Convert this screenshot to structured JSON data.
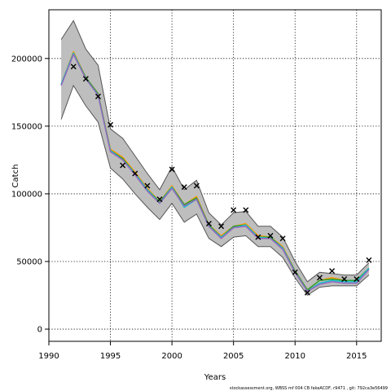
{
  "chart_data": {
    "type": "line",
    "title": "",
    "xlabel": "Years",
    "ylabel": "Catch",
    "xlim": [
      1990,
      2017
    ],
    "ylim": [
      -9000,
      236000
    ],
    "xticks": [
      1990,
      1995,
      2000,
      2005,
      2010,
      2015
    ],
    "yticks": [
      0,
      50000,
      100000,
      150000,
      200000
    ],
    "grid": true,
    "grid_style": "dotted",
    "x": [
      1991,
      1992,
      1993,
      1994,
      1995,
      1996,
      1997,
      1998,
      1999,
      2000,
      2001,
      2002,
      2003,
      2004,
      2005,
      2006,
      2007,
      2008,
      2009,
      2010,
      2011,
      2012,
      2013,
      2014,
      2015,
      2016
    ],
    "band": {
      "color": "#bebebe",
      "upper": [
        214000,
        228000,
        207000,
        195000,
        148000,
        141000,
        128000,
        115000,
        103000,
        120000,
        103000,
        110000,
        86000,
        77000,
        86000,
        87000,
        76000,
        76000,
        68000,
        50000,
        35000,
        42000,
        41000,
        40000,
        40000,
        49000
      ],
      "lower": [
        155000,
        180000,
        165000,
        153000,
        119000,
        111000,
        100000,
        90000,
        81000,
        93000,
        79000,
        85000,
        67000,
        61000,
        68000,
        69000,
        61000,
        61000,
        53000,
        38000,
        25000,
        31000,
        32000,
        32000,
        32000,
        40000
      ]
    },
    "series": [
      {
        "color": "#ff9900",
        "values": [
          181000,
          205000,
          186000,
          174000,
          133000,
          127000,
          116000,
          104000,
          94000,
          106000,
          92000,
          98000,
          77000,
          69000,
          76000,
          78000,
          69000,
          68000,
          61000,
          43000,
          29000,
          36000,
          38000,
          36000,
          36000,
          45000
        ]
      },
      {
        "color": "#2ca02c",
        "values": [
          181000,
          204000,
          186000,
          174000,
          132000,
          126000,
          115000,
          103000,
          94000,
          105000,
          92000,
          97000,
          77000,
          68000,
          76000,
          77000,
          68000,
          68000,
          60000,
          43000,
          29000,
          36000,
          37000,
          36000,
          36000,
          45000
        ]
      },
      {
        "color": "#17becf",
        "values": [
          181000,
          204000,
          185000,
          173000,
          132000,
          125000,
          115000,
          103000,
          93000,
          105000,
          90000,
          96000,
          76000,
          68000,
          75000,
          77000,
          68000,
          67000,
          60000,
          42000,
          28000,
          34000,
          36000,
          35000,
          35000,
          45000
        ]
      },
      {
        "color": "#9467bd",
        "values": [
          180000,
          203000,
          185000,
          173000,
          131000,
          125000,
          114000,
          102000,
          93000,
          104000,
          91000,
          96000,
          76000,
          67000,
          75000,
          76000,
          67000,
          67000,
          59000,
          42000,
          28000,
          33000,
          35000,
          34000,
          34000,
          44000
        ]
      }
    ],
    "observed": {
      "marker": "x",
      "color": "#000000",
      "values": [
        null,
        194000,
        185000,
        172000,
        151000,
        121000,
        115000,
        106000,
        96000,
        118000,
        105000,
        106000,
        78000,
        76000,
        88000,
        88000,
        68000,
        69000,
        67000,
        42000,
        27000,
        38000,
        43000,
        37000,
        37000,
        51000
      ]
    }
  },
  "footer": {
    "note": "stockassessment.org, WBSS mf 004 CB fakeACDF, r9471 , git: 792ca3e56499"
  }
}
